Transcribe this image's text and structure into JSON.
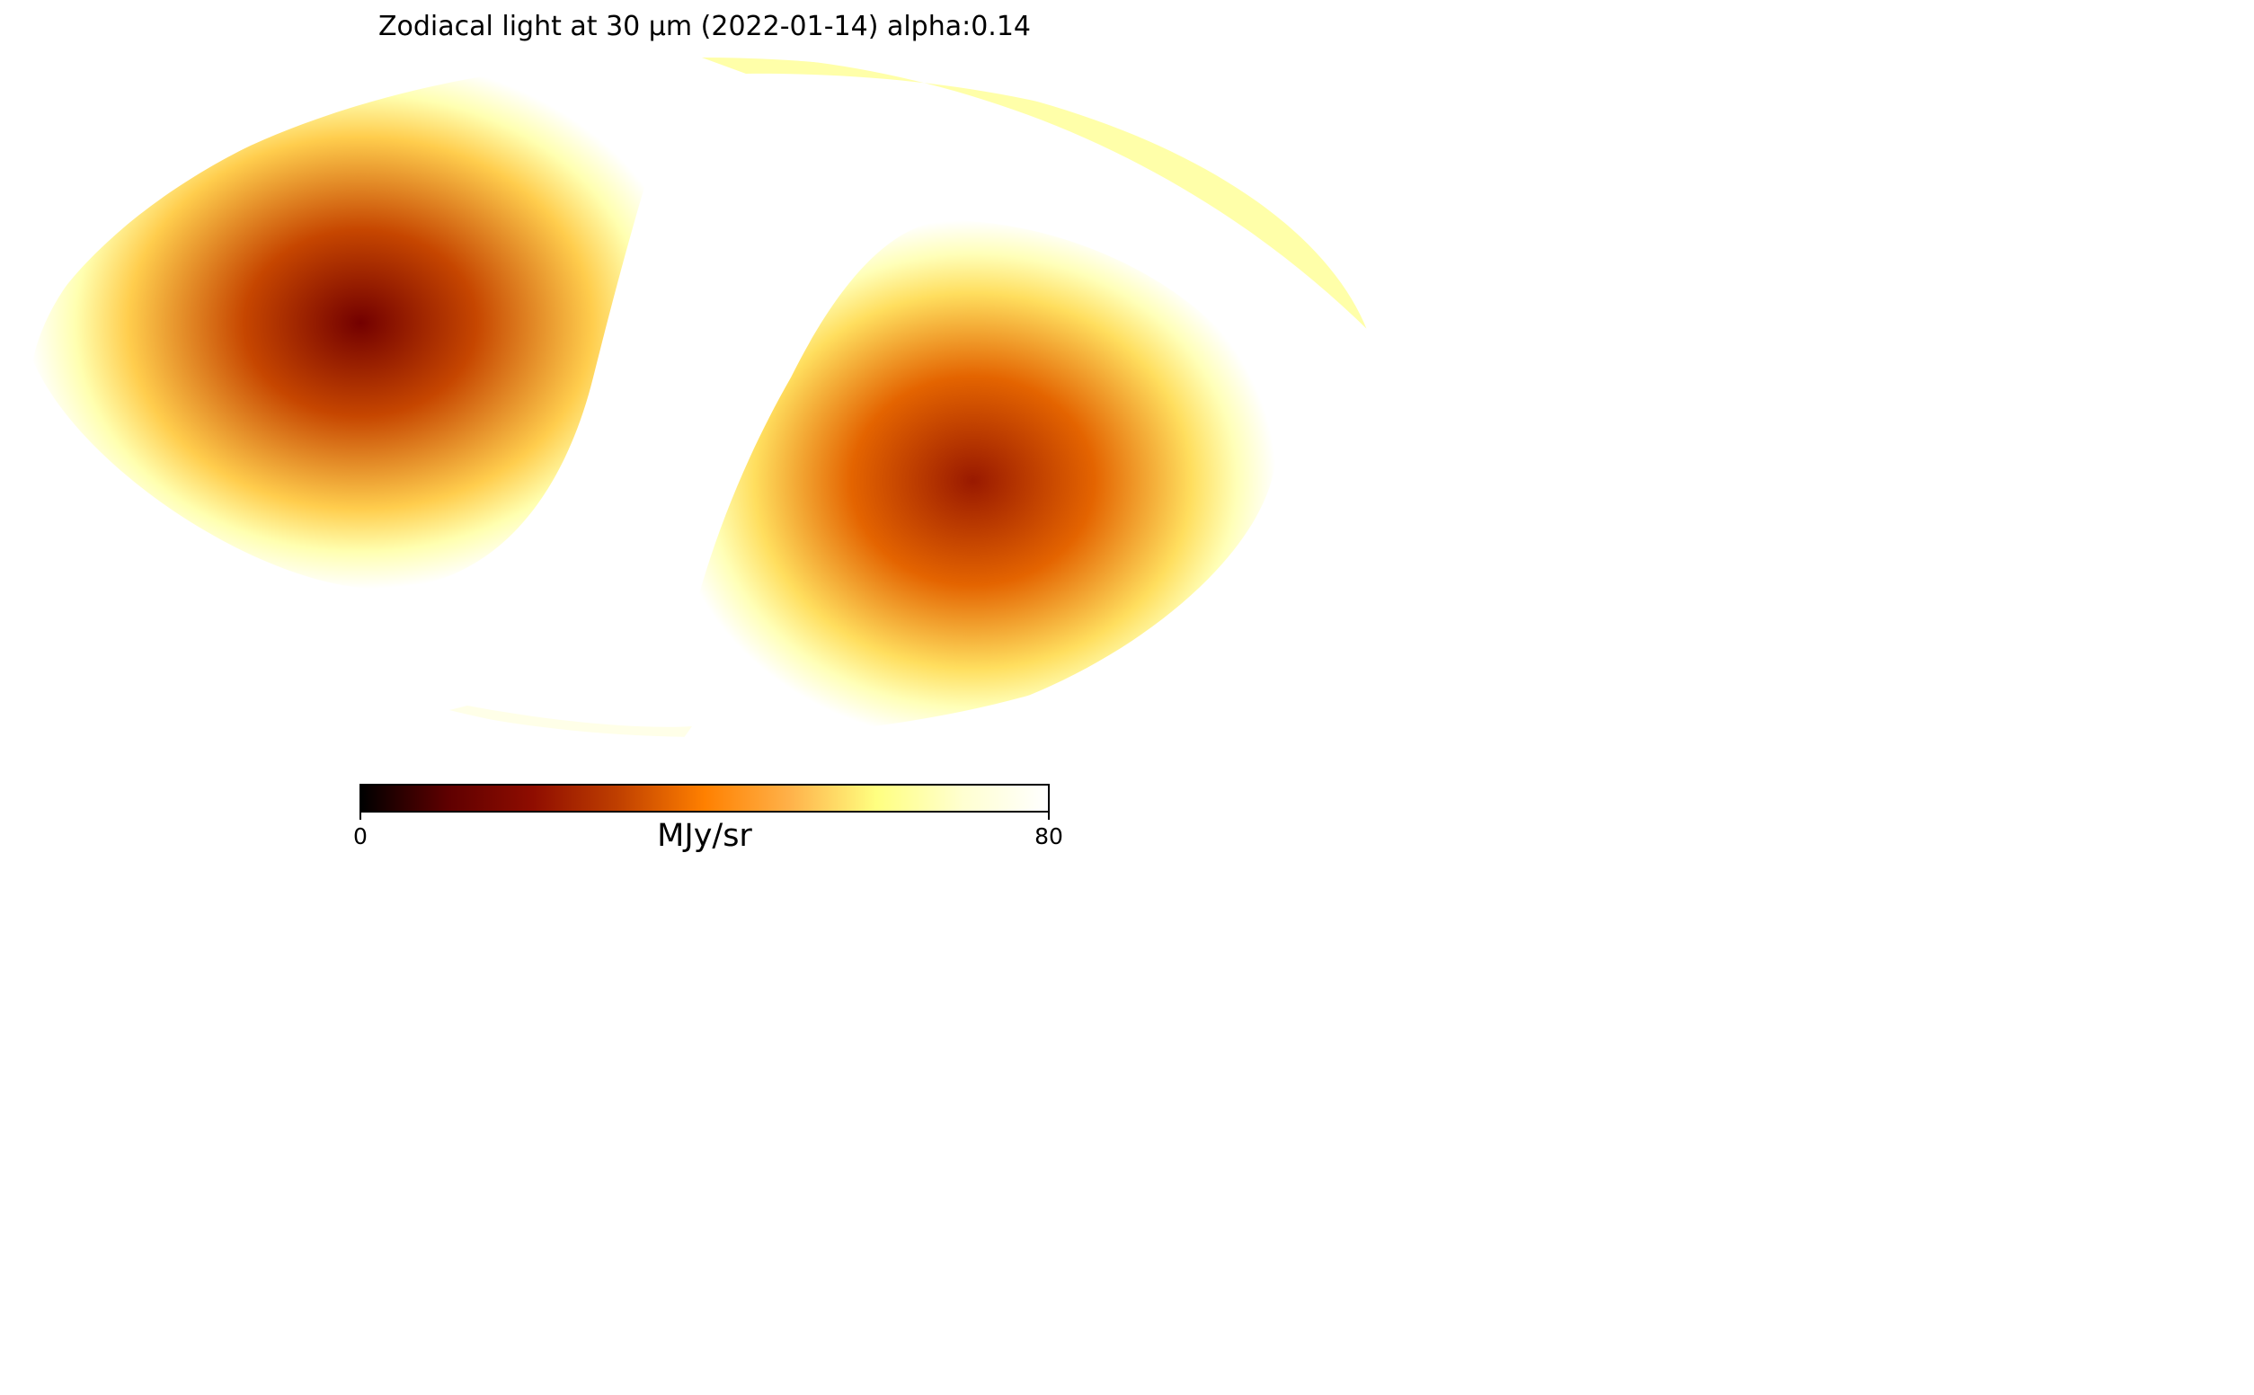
{
  "chart_data": {
    "type": "heatmap",
    "projection": "mollweide",
    "title": "Zodiacal light at 30 µm (2022-01-14) alpha:0.14",
    "colormap": "afmhot",
    "colorbar": {
      "label": "MJy/sr",
      "vmin": 0,
      "vmax": 80,
      "tick_labels": [
        "0",
        "80"
      ],
      "gradient_stops": [
        "#000000",
        "#5e0000",
        "#8f0d00",
        "#c04000",
        "#ff8000",
        "#ffb24a",
        "#ffff80",
        "#ffffd0",
        "#ffffff"
      ]
    },
    "features": [
      {
        "name": "northern-low-intensity-lobe",
        "approx_min_value": 18
      },
      {
        "name": "southern-low-intensity-lobe",
        "approx_min_value": 24
      },
      {
        "name": "ecliptic-band",
        "approx_value": 80
      }
    ]
  }
}
